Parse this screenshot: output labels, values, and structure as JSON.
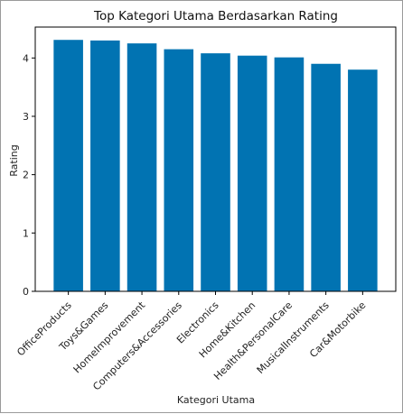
{
  "chart_data": {
    "type": "bar",
    "title": "Top Kategori Utama Berdasarkan Rating",
    "xlabel": "Kategori Utama",
    "ylabel": "Rating",
    "categories": [
      "OfficeProducts",
      "Toys&Games",
      "HomeImprovement",
      "Computers&Accessories",
      "Electronics",
      "Home&Kitchen",
      "Health&PersonalCare",
      "MusicalInstruments",
      "Car&Motorbike"
    ],
    "values": [
      4.31,
      4.3,
      4.25,
      4.15,
      4.08,
      4.04,
      4.01,
      3.9,
      3.8
    ],
    "ylim": [
      0,
      4.53
    ],
    "yticks": [
      "0",
      "1",
      "2",
      "3",
      "4"
    ],
    "bar_color": "#0173b2",
    "grid": false,
    "legend": "none"
  }
}
